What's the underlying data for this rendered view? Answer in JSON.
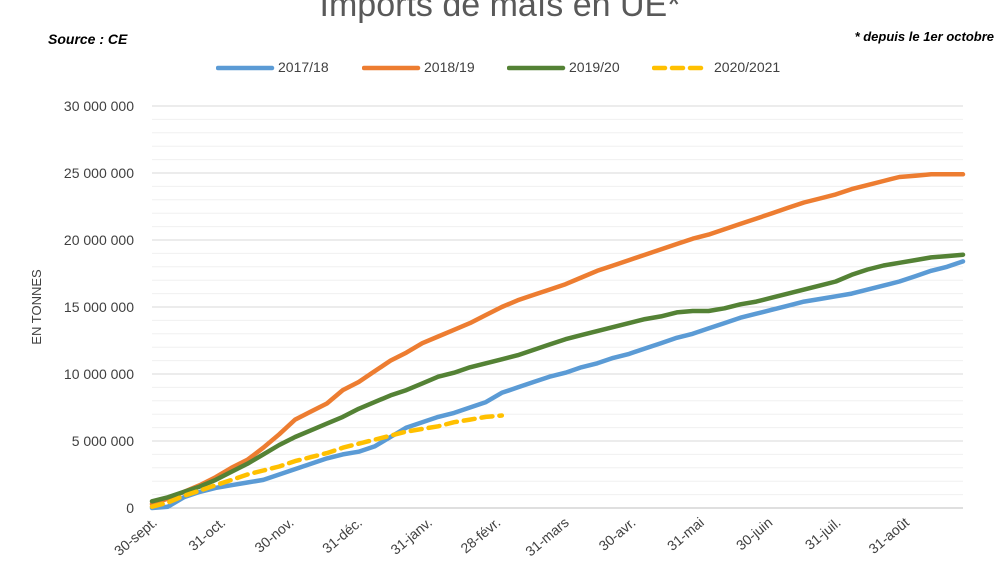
{
  "title": "Imports de maïs en UE*",
  "source": "Source : CE",
  "footnote": "* depuis le 1er octobre",
  "chart_data": {
    "type": "line",
    "ylabel": "EN TONNES",
    "xlabel": "",
    "ylim": [
      0,
      30000000
    ],
    "yticks": [
      0,
      5000000,
      10000000,
      15000000,
      20000000,
      25000000,
      30000000
    ],
    "ytick_labels": [
      "0",
      "5 000 000",
      "10 000 000",
      "15 000 000",
      "20 000 000",
      "25 000 000",
      "30 000 000"
    ],
    "x_unit": "week",
    "xlim": [
      0,
      51
    ],
    "xticks": [
      0,
      4.3,
      8.6,
      12.9,
      17.3,
      21.6,
      25.9,
      30.1,
      34.4,
      38.7,
      43.0,
      47.3
    ],
    "xtick_labels": [
      "30-sept.",
      "31-oct.",
      "30-nov.",
      "31-déc.",
      "31-janv.",
      "28-févr.",
      "31-mars",
      "30-avr.",
      "31-mai",
      "30-juin",
      "31-juil.",
      "31-août"
    ],
    "grid": true,
    "legend_position": "top",
    "series": [
      {
        "name": "2017/18",
        "color": "#5B9BD5",
        "dash": false,
        "x": [
          0,
          1,
          2,
          3,
          4,
          5,
          6,
          7,
          8,
          9,
          10,
          11,
          12,
          13,
          14,
          15,
          16,
          17,
          18,
          19,
          20,
          21,
          22,
          23,
          24,
          25,
          26,
          27,
          28,
          29,
          30,
          31,
          32,
          33,
          34,
          35,
          36,
          37,
          38,
          39,
          40,
          41,
          42,
          43,
          44,
          45,
          46,
          47,
          48,
          49,
          50,
          51
        ],
        "values": [
          0,
          100000,
          800000,
          1200000,
          1500000,
          1700000,
          1900000,
          2100000,
          2500000,
          2900000,
          3300000,
          3700000,
          4000000,
          4200000,
          4600000,
          5300000,
          6000000,
          6400000,
          6800000,
          7100000,
          7500000,
          7900000,
          8600000,
          9000000,
          9400000,
          9800000,
          10100000,
          10500000,
          10800000,
          11200000,
          11500000,
          11900000,
          12300000,
          12700000,
          13000000,
          13400000,
          13800000,
          14200000,
          14500000,
          14800000,
          15100000,
          15400000,
          15600000,
          15800000,
          16000000,
          16300000,
          16600000,
          16900000,
          17300000,
          17700000,
          18000000,
          18400000
        ]
      },
      {
        "name": "2018/19",
        "color": "#ED7D31",
        "dash": false,
        "x": [
          0,
          1,
          2,
          3,
          4,
          5,
          6,
          7,
          8,
          9,
          10,
          11,
          12,
          13,
          14,
          15,
          16,
          17,
          18,
          19,
          20,
          21,
          22,
          23,
          24,
          25,
          26,
          27,
          28,
          29,
          30,
          31,
          32,
          33,
          34,
          35,
          36,
          37,
          38,
          39,
          40,
          41,
          42,
          43,
          44,
          45,
          46,
          47,
          48,
          49,
          50,
          51
        ],
        "values": [
          300000,
          700000,
          1200000,
          1700000,
          2300000,
          3000000,
          3600000,
          4500000,
          5500000,
          6600000,
          7200000,
          7800000,
          8800000,
          9400000,
          10200000,
          11000000,
          11600000,
          12300000,
          12800000,
          13300000,
          13800000,
          14400000,
          15000000,
          15500000,
          15900000,
          16300000,
          16700000,
          17200000,
          17700000,
          18100000,
          18500000,
          18900000,
          19300000,
          19700000,
          20100000,
          20400000,
          20800000,
          21200000,
          21600000,
          22000000,
          22400000,
          22800000,
          23100000,
          23400000,
          23800000,
          24100000,
          24400000,
          24700000,
          24800000,
          24900000,
          24900000,
          24900000
        ]
      },
      {
        "name": "2019/20",
        "color": "#548235",
        "dash": false,
        "x": [
          0,
          1,
          2,
          3,
          4,
          5,
          6,
          7,
          8,
          9,
          10,
          11,
          12,
          13,
          14,
          15,
          16,
          17,
          18,
          19,
          20,
          21,
          22,
          23,
          24,
          25,
          26,
          27,
          28,
          29,
          30,
          31,
          32,
          33,
          34,
          35,
          36,
          37,
          38,
          39,
          40,
          41,
          42,
          43,
          44,
          45,
          46,
          47,
          48,
          49,
          50,
          51
        ],
        "values": [
          500000,
          800000,
          1200000,
          1600000,
          2100000,
          2700000,
          3300000,
          4000000,
          4700000,
          5300000,
          5800000,
          6300000,
          6800000,
          7400000,
          7900000,
          8400000,
          8800000,
          9300000,
          9800000,
          10100000,
          10500000,
          10800000,
          11100000,
          11400000,
          11800000,
          12200000,
          12600000,
          12900000,
          13200000,
          13500000,
          13800000,
          14100000,
          14300000,
          14600000,
          14700000,
          14700000,
          14900000,
          15200000,
          15400000,
          15700000,
          16000000,
          16300000,
          16600000,
          16900000,
          17400000,
          17800000,
          18100000,
          18300000,
          18500000,
          18700000,
          18800000,
          18900000
        ]
      },
      {
        "name": "2020/2021",
        "color": "#FFC000",
        "dash": true,
        "x": [
          0,
          1,
          2,
          3,
          4,
          5,
          6,
          7,
          8,
          9,
          10,
          11,
          12,
          13,
          14,
          15,
          16,
          17,
          18,
          19,
          20,
          21,
          22
        ],
        "values": [
          100000,
          400000,
          900000,
          1300000,
          1700000,
          2100000,
          2500000,
          2800000,
          3100000,
          3500000,
          3800000,
          4100000,
          4500000,
          4800000,
          5100000,
          5400000,
          5700000,
          5900000,
          6100000,
          6400000,
          6600000,
          6800000,
          6900000
        ]
      }
    ]
  }
}
